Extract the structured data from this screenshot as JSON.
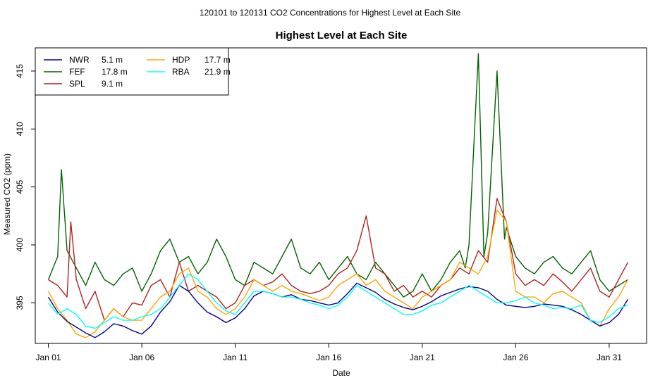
{
  "chart_data": {
    "type": "line",
    "suptitle": "120101  to  120131 CO2 Concentrations for Highest Level at Each Site",
    "title": "Highest Level at Each Site",
    "xlabel": "Date",
    "ylabel": "Measured CO2 (ppm)",
    "xlim": [
      -0.7,
      32.0
    ],
    "ylim": [
      391.5,
      417.0
    ],
    "x_ticks": [
      {
        "value": 0,
        "label": "Jan 01"
      },
      {
        "value": 5,
        "label": "Jan 06"
      },
      {
        "value": 10,
        "label": "Jan 11"
      },
      {
        "value": 15,
        "label": "Jan 16"
      },
      {
        "value": 20,
        "label": "Jan 21"
      },
      {
        "value": 25,
        "label": "Jan 26"
      },
      {
        "value": 30,
        "label": "Jan 31"
      }
    ],
    "y_ticks": [
      395,
      400,
      405,
      410,
      415
    ],
    "legend_location": "top-left",
    "series": [
      {
        "name": "NWR",
        "height": "5.1 m",
        "color": "#00008b",
        "x": [
          0,
          0.5,
          1,
          1.5,
          2,
          2.5,
          3,
          3.5,
          4,
          4.5,
          5,
          5.5,
          6,
          6.5,
          7,
          7.5,
          8,
          8.5,
          9,
          9.5,
          10,
          10.5,
          11,
          11.5,
          12,
          12.5,
          13,
          13.5,
          14,
          14.5,
          15,
          15.5,
          16,
          16.5,
          17,
          17.5,
          18,
          18.5,
          19,
          19.5,
          20,
          20.5,
          21,
          21.5,
          22,
          22.5,
          23,
          23.5,
          24,
          24.5,
          25,
          25.5,
          26,
          26.5,
          27,
          27.5,
          28,
          28.5,
          29,
          29.5,
          30,
          30.5,
          31
        ],
        "values": [
          395.5,
          394.2,
          393.4,
          392.9,
          392.4,
          392.0,
          392.5,
          393.2,
          393.0,
          392.6,
          392.3,
          393.0,
          394.2,
          395.1,
          396.5,
          396.0,
          395.0,
          394.2,
          393.8,
          393.3,
          393.7,
          394.5,
          395.6,
          396.0,
          395.8,
          395.5,
          395.7,
          395.3,
          395.2,
          395.0,
          394.8,
          395.0,
          395.8,
          396.7,
          396.3,
          395.9,
          395.3,
          394.9,
          394.6,
          394.4,
          394.7,
          395.1,
          395.6,
          395.9,
          396.2,
          396.4,
          396.3,
          396.0,
          395.3,
          394.8,
          394.7,
          394.6,
          394.7,
          394.9,
          394.8,
          394.7,
          394.4,
          394.0,
          393.5,
          393.0,
          393.3,
          394.0,
          395.3
        ]
      },
      {
        "name": "FEF",
        "height": "17.8 m",
        "color": "#006400",
        "x": [
          0,
          0.5,
          0.7,
          1,
          1.5,
          2,
          2.5,
          3,
          3.5,
          4,
          4.5,
          5,
          5.5,
          6,
          6.5,
          7,
          7.5,
          8,
          8.5,
          9,
          9.5,
          10,
          10.5,
          11,
          11.5,
          12,
          12.5,
          13,
          13.5,
          14,
          14.5,
          15,
          15.5,
          16,
          16.5,
          17,
          17.5,
          18,
          18.5,
          19,
          19.5,
          20,
          20.5,
          21,
          21.5,
          22,
          22.3,
          22.5,
          23,
          23.3,
          23.5,
          24,
          24.4,
          24.5,
          25,
          25.5,
          26,
          26.5,
          27,
          27.5,
          28,
          28.5,
          29,
          29.5,
          30,
          30.5,
          31
        ],
        "values": [
          397.0,
          399.0,
          406.5,
          399.5,
          398.0,
          396.5,
          398.5,
          397.0,
          396.5,
          397.5,
          398.0,
          396.0,
          397.5,
          399.5,
          400.5,
          398.5,
          399.0,
          397.5,
          398.5,
          400.5,
          399.0,
          397.0,
          396.5,
          398.5,
          398.0,
          397.5,
          399.0,
          400.5,
          398.0,
          397.5,
          398.5,
          397.0,
          398.0,
          399.0,
          397.5,
          397.0,
          398.5,
          397.5,
          396.5,
          395.5,
          396.0,
          397.5,
          396.0,
          397.0,
          398.5,
          399.5,
          398.0,
          400.0,
          416.5,
          399.0,
          401.0,
          415.0,
          400.5,
          401.5,
          399.0,
          398.0,
          397.5,
          398.5,
          399.0,
          398.0,
          397.5,
          398.5,
          399.5,
          397.0,
          396.0,
          396.5,
          397.0
        ]
      },
      {
        "name": "SPL",
        "height": "9.1 m",
        "color": "#b22222",
        "x": [
          0,
          0.5,
          1,
          1.2,
          1.5,
          2,
          2.5,
          3,
          3.5,
          4,
          4.5,
          5,
          5.5,
          6,
          6.5,
          7,
          7.5,
          8,
          8.5,
          9,
          9.5,
          10,
          10.5,
          11,
          11.5,
          12,
          12.5,
          13,
          13.5,
          14,
          14.5,
          15,
          15.5,
          16,
          16.5,
          17,
          17.5,
          18,
          18.5,
          19,
          19.5,
          20,
          20.5,
          21,
          21.5,
          22,
          22.5,
          23,
          23.5,
          24,
          24.5,
          25,
          25.5,
          26,
          26.5,
          27,
          27.5,
          28,
          28.5,
          29,
          29.5,
          30,
          30.5,
          31
        ],
        "values": [
          397.0,
          396.5,
          395.5,
          402.0,
          397.0,
          394.5,
          396.0,
          393.5,
          394.5,
          393.8,
          395.0,
          394.8,
          396.5,
          397.0,
          395.5,
          398.5,
          396.0,
          396.5,
          396.0,
          395.5,
          394.5,
          395.0,
          396.5,
          397.0,
          396.5,
          396.8,
          397.5,
          396.5,
          396.0,
          395.8,
          396.0,
          396.5,
          397.5,
          398.0,
          399.5,
          402.5,
          398.0,
          397.5,
          396.0,
          396.5,
          395.5,
          396.0,
          395.5,
          396.5,
          397.0,
          398.0,
          397.5,
          399.5,
          398.5,
          404.0,
          402.0,
          397.5,
          396.5,
          397.0,
          396.5,
          397.5,
          396.8,
          396.0,
          397.0,
          398.0,
          396.0,
          395.5,
          397.0,
          398.5
        ]
      },
      {
        "name": "HDP",
        "height": "17.7 m",
        "color": "#ffa500",
        "x": [
          0,
          0.5,
          1,
          1.5,
          2,
          2.5,
          3,
          3.5,
          4,
          4.5,
          5,
          5.5,
          6,
          6.5,
          7,
          7.5,
          8,
          8.5,
          9,
          9.5,
          10,
          10.5,
          11,
          11.5,
          12,
          12.5,
          13,
          13.5,
          14,
          14.5,
          15,
          15.5,
          16,
          16.5,
          17,
          17.5,
          18,
          18.5,
          19,
          19.5,
          20,
          20.5,
          21,
          21.5,
          22,
          22.5,
          23,
          23.5,
          24,
          24.5,
          25,
          25.5,
          26,
          26.5,
          27,
          27.5,
          28,
          28.5,
          29,
          29.5,
          30,
          30.5,
          31
        ],
        "values": [
          396.0,
          394.5,
          393.5,
          392.3,
          392.0,
          392.5,
          393.5,
          394.5,
          393.8,
          393.5,
          393.5,
          394.5,
          395.5,
          396.0,
          397.5,
          398.0,
          396.0,
          395.5,
          394.5,
          394.0,
          394.5,
          395.5,
          397.0,
          396.5,
          396.0,
          396.5,
          396.0,
          395.8,
          395.5,
          395.2,
          395.5,
          396.5,
          397.0,
          397.5,
          396.5,
          397.0,
          396.0,
          395.5,
          395.0,
          394.5,
          395.5,
          396.0,
          396.5,
          397.0,
          398.5,
          398.0,
          397.5,
          399.0,
          403.0,
          402.0,
          396.0,
          395.5,
          395.5,
          395.0,
          395.8,
          396.0,
          395.5,
          395.0,
          393.5,
          393.0,
          394.5,
          395.5,
          397.0
        ]
      },
      {
        "name": "RBA",
        "height": "21.9 m",
        "color": "#00ffff",
        "x": [
          0,
          0.5,
          1,
          1.5,
          2,
          2.5,
          3,
          3.5,
          4,
          4.5,
          5,
          5.5,
          6,
          6.5,
          7,
          7.5,
          8,
          8.5,
          9,
          9.5,
          10,
          10.5,
          11,
          11.5,
          12,
          12.5,
          13,
          13.5,
          14,
          14.5,
          15,
          15.5,
          16,
          16.5,
          17,
          17.5,
          18,
          18.5,
          19,
          19.5,
          20,
          20.5,
          21,
          21.5,
          22,
          22.5,
          23,
          23.5,
          24,
          24.5,
          25,
          25.5,
          26,
          26.5,
          27,
          27.5,
          28,
          28.5,
          29,
          29.5,
          30,
          30.5,
          31
        ],
        "values": [
          395.0,
          394.0,
          394.5,
          394.0,
          393.0,
          392.8,
          393.3,
          393.8,
          393.5,
          393.5,
          393.8,
          394.0,
          394.5,
          395.5,
          396.5,
          397.5,
          397.0,
          396.0,
          395.0,
          394.3,
          394.0,
          395.0,
          396.0,
          396.0,
          395.8,
          395.5,
          395.5,
          395.3,
          395.0,
          394.8,
          394.5,
          394.8,
          395.5,
          396.5,
          396.0,
          395.5,
          395.0,
          394.5,
          394.0,
          394.0,
          394.3,
          394.8,
          395.0,
          395.5,
          396.0,
          396.5,
          396.0,
          395.5,
          395.0,
          395.0,
          395.2,
          395.5,
          395.0,
          394.8,
          394.5,
          394.6,
          394.5,
          394.8,
          393.5,
          393.3,
          393.8,
          394.5,
          394.8
        ]
      }
    ]
  }
}
